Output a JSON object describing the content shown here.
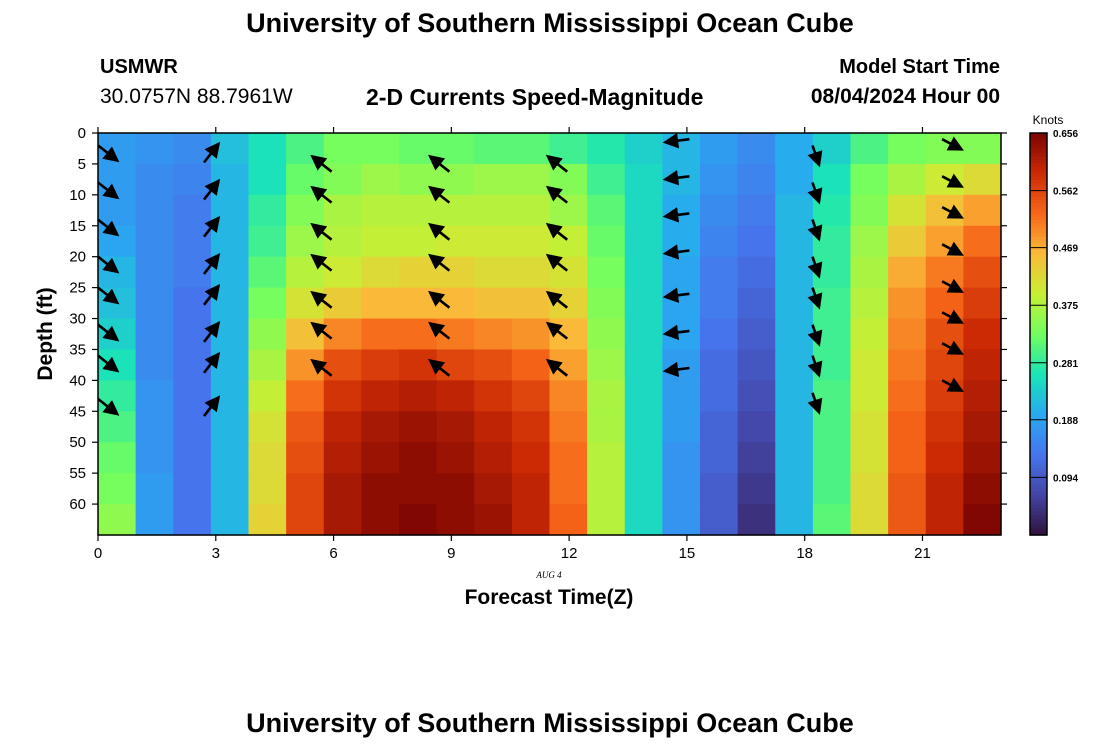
{
  "header": {
    "title": "University of Southern Mississippi Ocean Cube",
    "station_id": "USMWR",
    "station_coords": "30.0757N  88.7961W",
    "subtitle": "2-D Currents Speed-Magnitude",
    "model_start_label": "Model Start Time",
    "model_start_value": "08/04/2024 Hour 00"
  },
  "footer": {
    "title": "University of Southern Mississippi Ocean Cube"
  },
  "chart_data": {
    "type": "heatmap",
    "xlabel": "Forecast Time(Z)",
    "ylabel": "Depth (ft)",
    "date_label": "AUG  4",
    "xlim": [
      0,
      23
    ],
    "ylim": [
      0,
      65
    ],
    "x_ticks": [
      0,
      3,
      6,
      9,
      12,
      15,
      18,
      21
    ],
    "y_ticks": [
      0,
      5,
      10,
      15,
      20,
      25,
      30,
      35,
      40,
      45,
      50,
      55,
      60
    ],
    "colorbar": {
      "label": "Knots",
      "min": 0.0,
      "max": 0.656,
      "ticks": [
        "0.094",
        "0.188",
        "0.281",
        "0.375",
        "0.469",
        "0.562",
        "0.656"
      ]
    },
    "depth_bins": [
      0,
      5,
      10,
      15,
      20,
      25,
      30,
      35,
      40,
      45,
      50,
      55,
      60,
      65
    ],
    "hours": [
      0,
      1,
      2,
      3,
      4,
      5,
      6,
      7,
      8,
      9,
      10,
      11,
      12,
      13,
      14,
      15,
      16,
      17,
      18,
      19,
      20,
      21,
      22,
      23
    ],
    "speed_knots": [
      [
        0.18,
        0.17,
        0.16,
        0.22,
        0.26,
        0.3,
        0.33,
        0.33,
        0.32,
        0.32,
        0.31,
        0.31,
        0.29,
        0.27,
        0.24,
        0.21,
        0.18,
        0.16,
        0.2,
        0.24,
        0.3,
        0.33,
        0.34,
        0.34
      ],
      [
        0.18,
        0.16,
        0.15,
        0.21,
        0.26,
        0.32,
        0.34,
        0.36,
        0.35,
        0.35,
        0.36,
        0.36,
        0.34,
        0.29,
        0.25,
        0.21,
        0.17,
        0.15,
        0.2,
        0.26,
        0.33,
        0.37,
        0.4,
        0.42
      ],
      [
        0.18,
        0.16,
        0.14,
        0.21,
        0.28,
        0.34,
        0.37,
        0.38,
        0.38,
        0.38,
        0.38,
        0.38,
        0.36,
        0.31,
        0.25,
        0.2,
        0.16,
        0.14,
        0.21,
        0.27,
        0.34,
        0.41,
        0.45,
        0.48
      ],
      [
        0.19,
        0.16,
        0.14,
        0.21,
        0.29,
        0.36,
        0.38,
        0.39,
        0.39,
        0.4,
        0.4,
        0.4,
        0.39,
        0.32,
        0.25,
        0.2,
        0.15,
        0.13,
        0.21,
        0.28,
        0.36,
        0.44,
        0.48,
        0.52
      ],
      [
        0.21,
        0.16,
        0.14,
        0.21,
        0.31,
        0.38,
        0.4,
        0.42,
        0.43,
        0.43,
        0.42,
        0.42,
        0.41,
        0.33,
        0.25,
        0.19,
        0.14,
        0.12,
        0.21,
        0.28,
        0.37,
        0.47,
        0.51,
        0.55
      ],
      [
        0.22,
        0.16,
        0.13,
        0.21,
        0.33,
        0.41,
        0.44,
        0.46,
        0.46,
        0.46,
        0.45,
        0.45,
        0.43,
        0.34,
        0.25,
        0.19,
        0.14,
        0.11,
        0.21,
        0.29,
        0.38,
        0.49,
        0.53,
        0.57
      ],
      [
        0.24,
        0.16,
        0.13,
        0.21,
        0.35,
        0.45,
        0.5,
        0.52,
        0.52,
        0.51,
        0.5,
        0.49,
        0.46,
        0.35,
        0.25,
        0.19,
        0.13,
        0.1,
        0.21,
        0.29,
        0.39,
        0.5,
        0.55,
        0.59
      ],
      [
        0.26,
        0.16,
        0.13,
        0.21,
        0.37,
        0.49,
        0.55,
        0.57,
        0.58,
        0.56,
        0.55,
        0.53,
        0.48,
        0.36,
        0.25,
        0.18,
        0.12,
        0.09,
        0.21,
        0.29,
        0.4,
        0.51,
        0.56,
        0.6
      ],
      [
        0.28,
        0.17,
        0.13,
        0.21,
        0.39,
        0.52,
        0.58,
        0.6,
        0.61,
        0.6,
        0.58,
        0.56,
        0.5,
        0.37,
        0.25,
        0.18,
        0.12,
        0.08,
        0.21,
        0.3,
        0.4,
        0.52,
        0.57,
        0.61
      ],
      [
        0.3,
        0.17,
        0.13,
        0.21,
        0.41,
        0.54,
        0.6,
        0.62,
        0.63,
        0.62,
        0.6,
        0.58,
        0.51,
        0.37,
        0.25,
        0.18,
        0.11,
        0.07,
        0.21,
        0.3,
        0.41,
        0.53,
        0.58,
        0.62
      ],
      [
        0.32,
        0.17,
        0.13,
        0.21,
        0.42,
        0.55,
        0.61,
        0.63,
        0.64,
        0.63,
        0.61,
        0.59,
        0.52,
        0.38,
        0.25,
        0.17,
        0.11,
        0.06,
        0.21,
        0.3,
        0.41,
        0.53,
        0.59,
        0.63
      ],
      [
        0.33,
        0.18,
        0.13,
        0.21,
        0.42,
        0.56,
        0.62,
        0.64,
        0.64,
        0.64,
        0.62,
        0.6,
        0.52,
        0.38,
        0.25,
        0.17,
        0.1,
        0.05,
        0.21,
        0.3,
        0.42,
        0.54,
        0.6,
        0.64
      ],
      [
        0.35,
        0.18,
        0.13,
        0.21,
        0.43,
        0.56,
        0.62,
        0.64,
        0.65,
        0.64,
        0.63,
        0.6,
        0.53,
        0.38,
        0.25,
        0.17,
        0.1,
        0.04,
        0.21,
        0.31,
        0.42,
        0.54,
        0.6,
        0.65
      ]
    ],
    "vector_depths": [
      2,
      8,
      13,
      19,
      24,
      30,
      35,
      40,
      45
    ],
    "vectors": [
      {
        "hour": 0,
        "depths": [
          2,
          8,
          14,
          20,
          25,
          31,
          36,
          43
        ],
        "dx": 0.6,
        "dy": 3.0
      },
      {
        "hour": 2.7,
        "depths": [
          2,
          8,
          14,
          20,
          25,
          31,
          36,
          43
        ],
        "dx": 0.45,
        "dy": -3.7
      },
      {
        "hour": 5.5,
        "depths": [
          4,
          9,
          15,
          20,
          26,
          31,
          37
        ],
        "dx": -0.6,
        "dy": -3.0
      },
      {
        "hour": 8.5,
        "depths": [
          4,
          9,
          15,
          20,
          26,
          31,
          37
        ],
        "dx": -0.6,
        "dy": -3.0
      },
      {
        "hour": 11.5,
        "depths": [
          4,
          9,
          15,
          20,
          26,
          31,
          37
        ],
        "dx": -0.6,
        "dy": -3.0
      },
      {
        "hour": 14.5,
        "depths": [
          1,
          7,
          13,
          19,
          26,
          32,
          38
        ],
        "dx": -0.75,
        "dy": 0.6
      },
      {
        "hour": 18.2,
        "depths": [
          2,
          8,
          14,
          20,
          25,
          31,
          36,
          42
        ],
        "dx": 0.2,
        "dy": 3.8
      },
      {
        "hour": 21.5,
        "depths": [
          1,
          7,
          12,
          18,
          24,
          29,
          34,
          40
        ],
        "dx": 0.6,
        "dy": 2.0
      }
    ]
  }
}
